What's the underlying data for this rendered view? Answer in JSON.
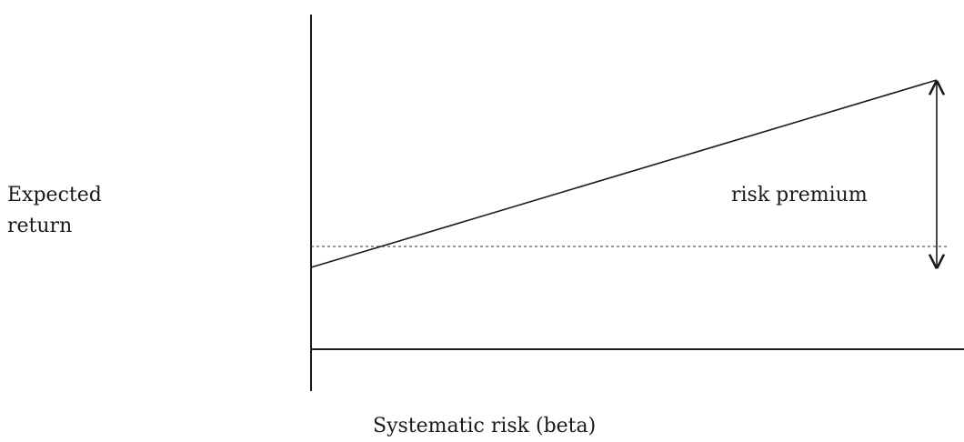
{
  "diagram": {
    "y_axis_label": "Expected\nreturn",
    "x_axis_label": "Systematic risk (beta)",
    "annotation": "risk premium",
    "elements": {
      "line": "upward-sloping line",
      "reference": "dotted horizontal line",
      "premium_marker": "double-headed vertical arrow"
    }
  }
}
